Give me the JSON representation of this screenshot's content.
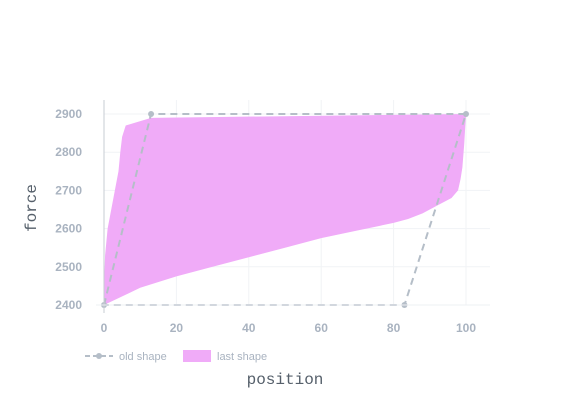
{
  "chart_data": {
    "type": "area",
    "xlabel": "position",
    "ylabel": "force",
    "xlim": [
      0,
      100
    ],
    "ylim": [
      2400,
      2900
    ],
    "x_ticks": [
      "0",
      "20",
      "40",
      "60",
      "80",
      "100"
    ],
    "y_ticks": [
      "2400",
      "2500",
      "2600",
      "2700",
      "2800",
      "2900"
    ],
    "legend_placement": "bottom-left",
    "grid": true,
    "series": [
      {
        "name": "old shape",
        "kind": "line-dashed-markers",
        "color": "#b5bec8",
        "x": [
          0,
          13,
          100,
          83,
          0
        ],
        "y": [
          2400,
          2900,
          2900,
          2400,
          2400
        ]
      },
      {
        "name": "last shape",
        "kind": "filled-polygon",
        "color": "#f0abf8",
        "x": [
          0,
          0,
          0.3,
          1,
          2,
          3,
          4,
          4.5,
          5,
          6,
          13,
          100,
          99.5,
          99,
          98.5,
          97.8,
          96,
          92,
          88,
          84,
          80,
          75,
          70,
          60,
          50,
          40,
          30,
          20,
          10,
          0
        ],
        "y": [
          2400,
          2450,
          2530,
          2600,
          2650,
          2700,
          2750,
          2800,
          2840,
          2870,
          2890,
          2900,
          2820,
          2760,
          2730,
          2700,
          2680,
          2660,
          2640,
          2625,
          2615,
          2605,
          2595,
          2575,
          2550,
          2525,
          2500,
          2475,
          2445,
          2400
        ]
      }
    ]
  }
}
